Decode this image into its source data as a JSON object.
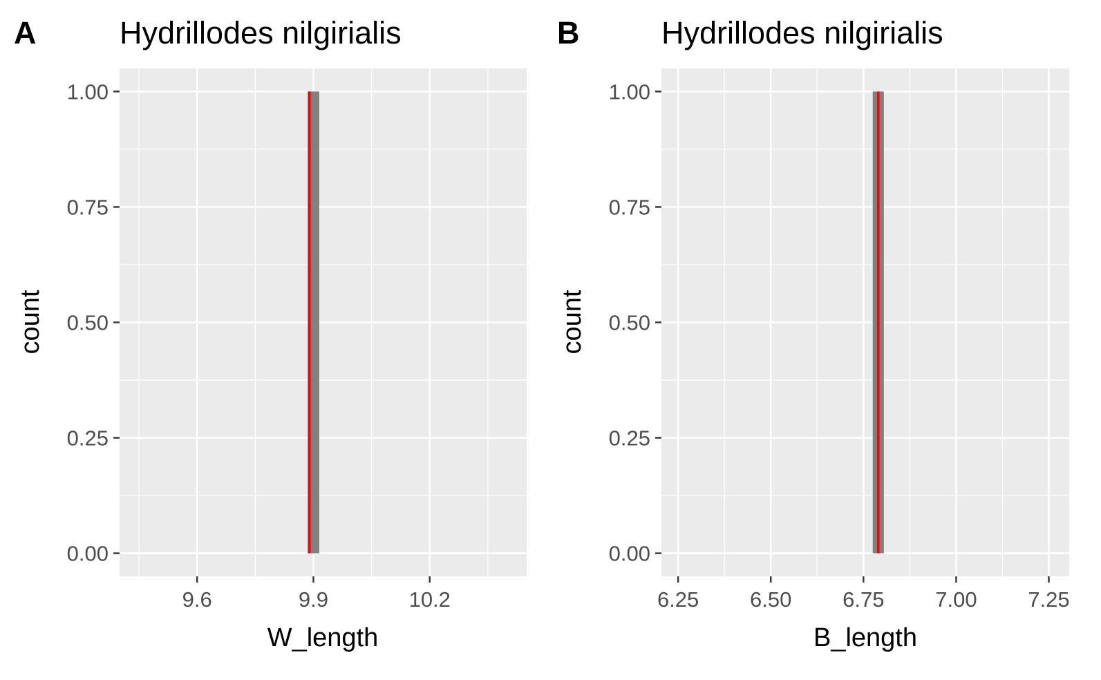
{
  "colors": {
    "panel_background": "#ebebeb",
    "grid": "#ffffff",
    "bar_fill": "#808080",
    "mean_line": "#ff0000",
    "tick_mark": "#333333",
    "tick_label": "#4d4d4d"
  },
  "chart_data": [
    {
      "type": "bar",
      "tag": "A",
      "title": "Hydrillodes nilgirialis",
      "xlabel": "W_length",
      "ylabel": "count",
      "xlim": [
        9.4,
        10.45
      ],
      "ylim": [
        -0.05,
        1.05
      ],
      "x_ticks": [
        9.6,
        9.9,
        10.2
      ],
      "x_tick_labels": [
        "9.6",
        "9.9",
        "10.2"
      ],
      "y_ticks": [
        0,
        0.25,
        0.5,
        0.75,
        1
      ],
      "y_tick_labels": [
        "0.00",
        "0.25",
        "0.50",
        "0.75",
        "1.00"
      ],
      "grid": true,
      "bars": [
        {
          "x_start": 9.885,
          "x_end": 9.915,
          "count": 1
        }
      ],
      "vline": {
        "x": 9.89,
        "color": "#ff0000"
      }
    },
    {
      "type": "bar",
      "tag": "B",
      "title": "Hydrillodes nilgirialis",
      "xlabel": "B_length",
      "ylabel": "count",
      "xlim": [
        6.205,
        7.305
      ],
      "ylim": [
        -0.05,
        1.05
      ],
      "x_ticks": [
        6.25,
        6.5,
        6.75,
        7.0,
        7.25
      ],
      "x_tick_labels": [
        "6.25",
        "6.50",
        "6.75",
        "7.00",
        "7.25"
      ],
      "y_ticks": [
        0,
        0.25,
        0.5,
        0.75,
        1
      ],
      "y_tick_labels": [
        "0.00",
        "0.25",
        "0.50",
        "0.75",
        "1.00"
      ],
      "grid": true,
      "bars": [
        {
          "x_start": 6.775,
          "x_end": 6.805,
          "count": 1
        }
      ],
      "vline": {
        "x": 6.79,
        "color": "#ff0000"
      }
    }
  ]
}
